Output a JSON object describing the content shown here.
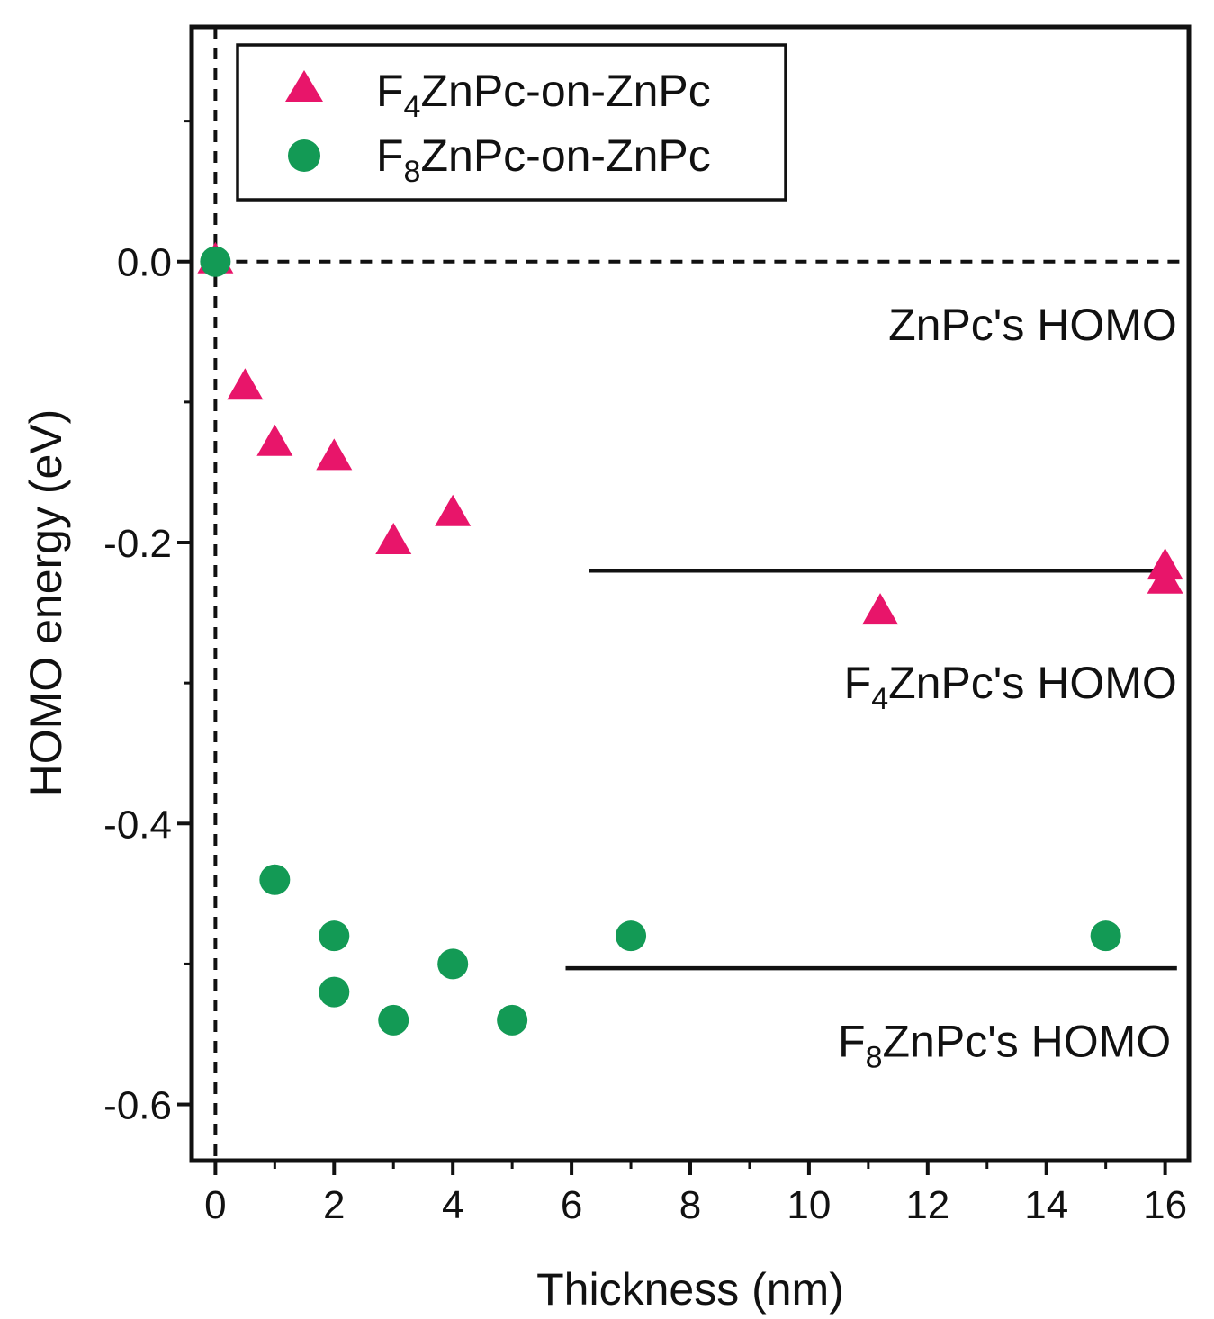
{
  "chart_data": {
    "type": "scatter",
    "title": "",
    "xlabel": "Thickness (nm)",
    "ylabel": "HOMO energy (eV)",
    "xlim": [
      -0.4,
      16.4
    ],
    "ylim": [
      -0.64,
      0.167
    ],
    "xticks": [
      0,
      2,
      4,
      6,
      8,
      10,
      12,
      14,
      16
    ],
    "xtick_labels": [
      "0",
      "2",
      "4",
      "6",
      "8",
      "10",
      "12",
      "14",
      "16"
    ],
    "yticks": [
      0.0,
      -0.2,
      -0.4,
      -0.6
    ],
    "ytick_labels": [
      "0.0",
      "-0.2",
      "-0.4",
      "-0.6"
    ],
    "grid": false,
    "legend_position": "top-left",
    "series": [
      {
        "name": "F4ZnPc-on-ZnPc",
        "legend_base": "F",
        "legend_sub": "4",
        "legend_rest": "ZnPc-on-ZnPc",
        "marker": "triangle",
        "color": "#e8156a",
        "x": [
          0,
          0.5,
          1,
          2,
          3,
          4,
          11.2,
          16,
          16
        ],
        "y": [
          0.0,
          -0.09,
          -0.13,
          -0.14,
          -0.2,
          -0.18,
          -0.25,
          -0.218,
          -0.228
        ]
      },
      {
        "name": "F8ZnPc-on-ZnPc",
        "legend_base": "F",
        "legend_sub": "8",
        "legend_rest": "ZnPc-on-ZnPc",
        "marker": "circle",
        "color": "#139a55",
        "x": [
          0,
          1,
          2,
          2,
          3,
          4,
          5,
          7,
          15
        ],
        "y": [
          0.0,
          -0.44,
          -0.48,
          -0.52,
          -0.54,
          -0.5,
          -0.54,
          -0.48,
          -0.48
        ]
      }
    ],
    "reference_lines": [
      {
        "name": "ZnPc's HOMO",
        "orientation": "horizontal",
        "value": 0.0,
        "style": "dashed",
        "x_from": 0,
        "x_to": 16.4
      },
      {
        "name": "zero-thickness",
        "orientation": "vertical",
        "value": 0,
        "style": "dashed"
      },
      {
        "name": "F4ZnPc's HOMO",
        "orientation": "horizontal",
        "value": -0.22,
        "style": "solid",
        "x_from": 6.3,
        "x_to": 16.2
      },
      {
        "name": "F8ZnPc's HOMO",
        "orientation": "horizontal",
        "value": -0.503,
        "style": "solid",
        "x_from": 5.9,
        "x_to": 16.2
      }
    ],
    "annotations": [
      {
        "label": "ZnPc's HOMO",
        "base": "ZnPc's HOMO",
        "sub": "",
        "rest": "",
        "x": 16.2,
        "y": -0.045
      },
      {
        "label": "F4ZnPc's HOMO",
        "base": "F",
        "sub": "4",
        "rest": "ZnPc's HOMO",
        "x": 16.2,
        "y": -0.3
      },
      {
        "label": "F8ZnPc's HOMO",
        "base": "F",
        "sub": "8",
        "rest": "ZnPc's HOMO",
        "x": 16.1,
        "y": -0.555
      }
    ]
  }
}
